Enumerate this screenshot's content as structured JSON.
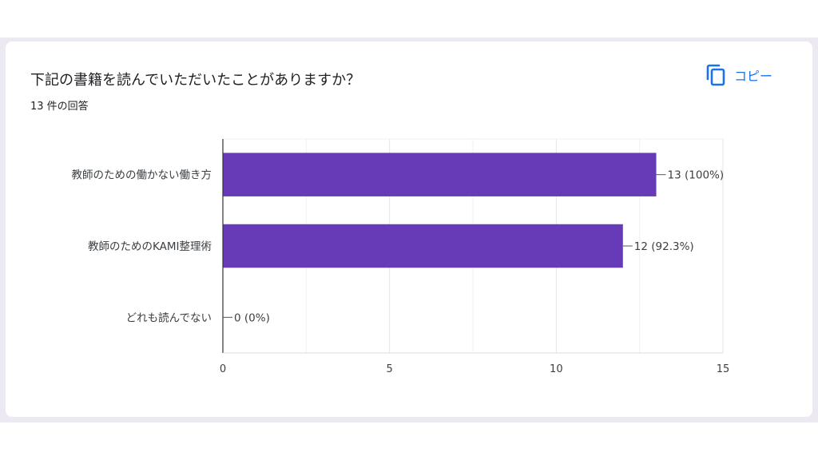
{
  "question": {
    "title": "下記の書籍を読んでいただいたことがありますか？",
    "response_count": "13 件の回答",
    "copy_label": "コピー"
  },
  "colors": {
    "bar": "#673ab7",
    "accent": "#1a73e8",
    "grid": "#e8e8e8",
    "background_band": "#ede9f3"
  },
  "icons": {
    "copy": "copy-icon"
  },
  "chart_data": {
    "type": "bar",
    "orientation": "horizontal",
    "title": "",
    "xlabel": "",
    "ylabel": "",
    "categories": [
      "教師のための働かない働き方",
      "教師のためのKAMI整理術",
      "どれも読んでない"
    ],
    "values": [
      13,
      12,
      0
    ],
    "data_labels": [
      "13 (100%)",
      "12 (92.3%)",
      "0 (0%)"
    ],
    "xlim": [
      0,
      15
    ],
    "x_ticks": [
      0,
      5,
      10,
      15
    ],
    "grid": true,
    "legend": "none"
  }
}
